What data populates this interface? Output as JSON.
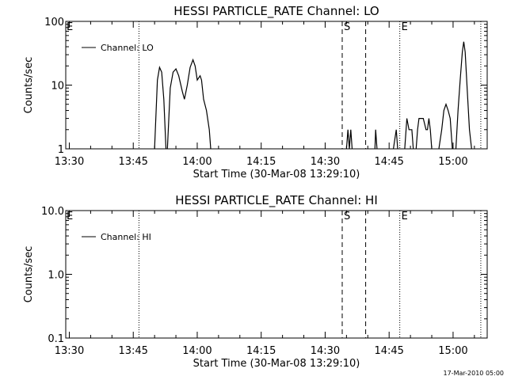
{
  "footer": {
    "timestamp": "17-Mar-2010 05:00"
  },
  "chart_data": [
    {
      "type": "line",
      "title": "HESSI PARTICLE_RATE Channel: LO",
      "xlabel": "Start Time (30-Mar-08 13:29:10)",
      "ylabel": "Counts/sec",
      "xlim": [
        "13:29:10",
        "15:08:00"
      ],
      "x_ticks": [
        "13:30",
        "13:45",
        "14:00",
        "14:15",
        "14:30",
        "14:45",
        "15:00"
      ],
      "ylim": [
        1,
        100
      ],
      "y_scale": "log",
      "y_ticks": [
        "1",
        "10",
        "100"
      ],
      "grid": false,
      "legend_position": "top-left",
      "series": [
        {
          "name": "Channel: LO",
          "color": "#000000",
          "segments": [
            [
              [
                "13:50:00",
                1
              ],
              [
                "13:50:40",
                12
              ],
              [
                "13:51:10",
                19
              ],
              [
                "13:51:40",
                16
              ],
              [
                "13:52:10",
                6
              ],
              [
                "13:52:40",
                1
              ]
            ],
            [
              [
                "13:53:00",
                1
              ],
              [
                "13:53:40",
                9
              ],
              [
                "13:54:20",
                16
              ],
              [
                "13:55:00",
                18
              ],
              [
                "13:55:40",
                14
              ],
              [
                "13:56:30",
                8
              ],
              [
                "13:57:00",
                6
              ],
              [
                "13:57:40",
                10
              ],
              [
                "13:58:20",
                19
              ],
              [
                "13:59:00",
                25
              ],
              [
                "13:59:30",
                20
              ],
              [
                "14:00:00",
                12
              ],
              [
                "14:00:40",
                14
              ],
              [
                "14:01:00",
                12
              ],
              [
                "14:01:30",
                6
              ],
              [
                "14:02:10",
                4
              ],
              [
                "14:02:50",
                2
              ],
              [
                "14:03:10",
                1
              ]
            ],
            [
              [
                "14:35:00",
                1
              ],
              [
                "14:35:20",
                2
              ],
              [
                "14:35:40",
                1
              ],
              [
                "14:36:00",
                2
              ],
              [
                "14:36:20",
                1
              ]
            ],
            [
              [
                "14:41:40",
                1
              ],
              [
                "14:41:50",
                2
              ],
              [
                "14:42:10",
                1
              ]
            ],
            [
              [
                "14:46:00",
                1
              ],
              [
                "14:46:40",
                2
              ],
              [
                "14:47:00",
                1
              ]
            ],
            [
              [
                "14:48:40",
                1
              ],
              [
                "14:49:10",
                3
              ],
              [
                "14:49:40",
                2
              ],
              [
                "14:50:20",
                2
              ],
              [
                "14:50:40",
                1
              ]
            ],
            [
              [
                "14:51:20",
                1
              ],
              [
                "14:51:40",
                2
              ],
              [
                "14:52:00",
                3
              ],
              [
                "14:53:00",
                3
              ],
              [
                "14:53:40",
                2
              ],
              [
                "14:54:00",
                2
              ],
              [
                "14:54:20",
                3
              ],
              [
                "14:54:40",
                2
              ],
              [
                "14:55:00",
                1
              ]
            ],
            [
              [
                "14:56:40",
                1
              ],
              [
                "14:57:20",
                2
              ],
              [
                "14:57:50",
                4
              ],
              [
                "14:58:20",
                5
              ],
              [
                "14:58:50",
                4
              ],
              [
                "14:59:20",
                3
              ],
              [
                "14:59:50",
                1
              ]
            ],
            [
              [
                "15:00:40",
                1
              ],
              [
                "15:01:10",
                4
              ],
              [
                "15:01:40",
                12
              ],
              [
                "15:02:10",
                33
              ],
              [
                "15:02:30",
                48
              ],
              [
                "15:02:50",
                33
              ],
              [
                "15:03:20",
                8
              ],
              [
                "15:03:50",
                2
              ],
              [
                "15:04:20",
                1
              ]
            ]
          ]
        }
      ],
      "markers": [
        {
          "time": "13:46:20",
          "style": "dotted",
          "label": ""
        },
        {
          "time": "14:34:00",
          "style": "dashed",
          "label": "S"
        },
        {
          "time": "14:39:30",
          "style": "dashed",
          "label": ""
        },
        {
          "time": "14:47:30",
          "style": "dotted",
          "label": "E"
        },
        {
          "time": "15:06:30",
          "style": "dotted",
          "label": ""
        }
      ],
      "corner_label": "E"
    },
    {
      "type": "line",
      "title": "HESSI PARTICLE_RATE Channel: HI",
      "xlabel": "Start Time (30-Mar-08 13:29:10)",
      "ylabel": "Counts/sec",
      "xlim": [
        "13:29:10",
        "15:08:00"
      ],
      "x_ticks": [
        "13:30",
        "13:45",
        "14:00",
        "14:15",
        "14:30",
        "14:45",
        "15:00"
      ],
      "ylim": [
        0.1,
        10
      ],
      "y_scale": "log",
      "y_ticks": [
        "0.1",
        "1.0",
        "10.0"
      ],
      "grid": false,
      "legend_position": "top-left",
      "series": [
        {
          "name": "Channel: HI",
          "color": "#000000",
          "segments": []
        }
      ],
      "markers": [
        {
          "time": "13:46:20",
          "style": "dotted",
          "label": ""
        },
        {
          "time": "14:34:00",
          "style": "dashed",
          "label": "S"
        },
        {
          "time": "14:39:30",
          "style": "dashed",
          "label": ""
        },
        {
          "time": "14:47:30",
          "style": "dotted",
          "label": "E"
        },
        {
          "time": "15:06:30",
          "style": "dotted",
          "label": ""
        }
      ],
      "corner_label": "E"
    }
  ]
}
